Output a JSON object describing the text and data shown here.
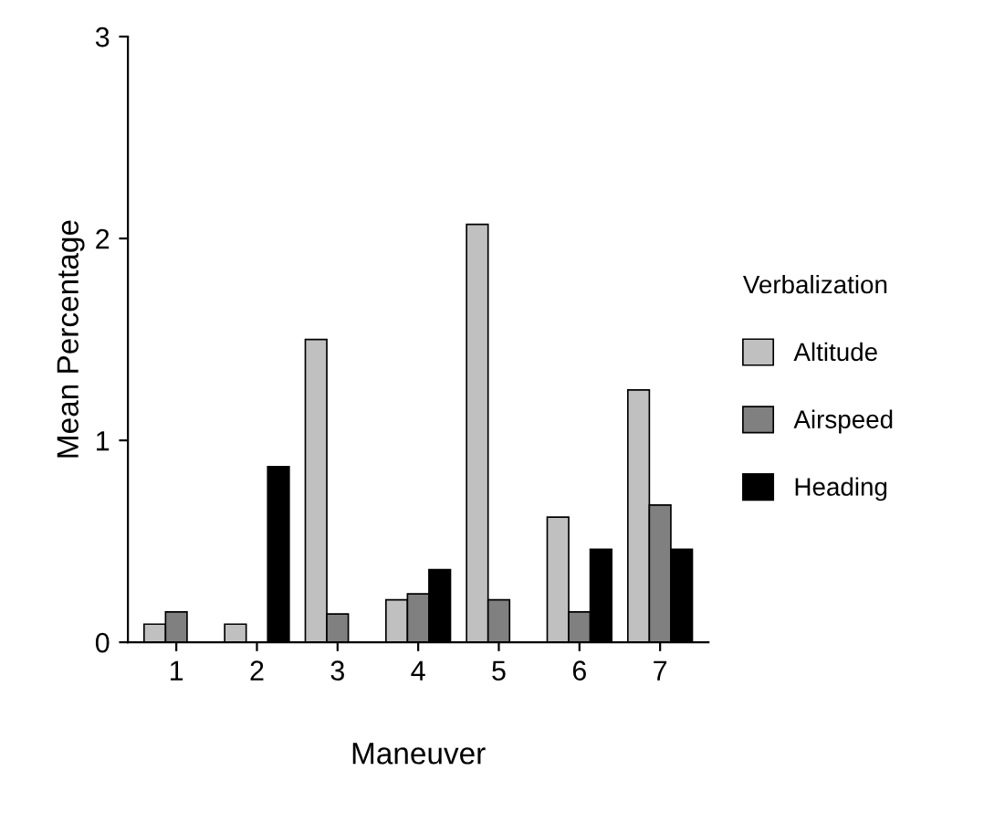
{
  "chart_data": {
    "type": "bar",
    "xlabel": "Maneuver",
    "ylabel": "Mean Percentage",
    "legend_title": "Verbalization",
    "categories": [
      "1",
      "2",
      "3",
      "4",
      "5",
      "6",
      "7"
    ],
    "series": [
      {
        "name": "Altitude",
        "color": "#c0c0c0",
        "values": [
          0.09,
          0.09,
          1.5,
          0.21,
          2.07,
          0.62,
          1.25
        ]
      },
      {
        "name": "Airspeed",
        "color": "#808080",
        "values": [
          0.15,
          0,
          0.14,
          0.24,
          0.21,
          0.15,
          0.68
        ]
      },
      {
        "name": "Heading",
        "color": "#000000",
        "values": [
          0,
          0.87,
          0,
          0.36,
          0,
          0.46,
          0.46
        ]
      }
    ],
    "ylim": [
      0,
      3
    ],
    "yticks": [
      0,
      1,
      2,
      3
    ],
    "grid": false,
    "legend": "right"
  }
}
